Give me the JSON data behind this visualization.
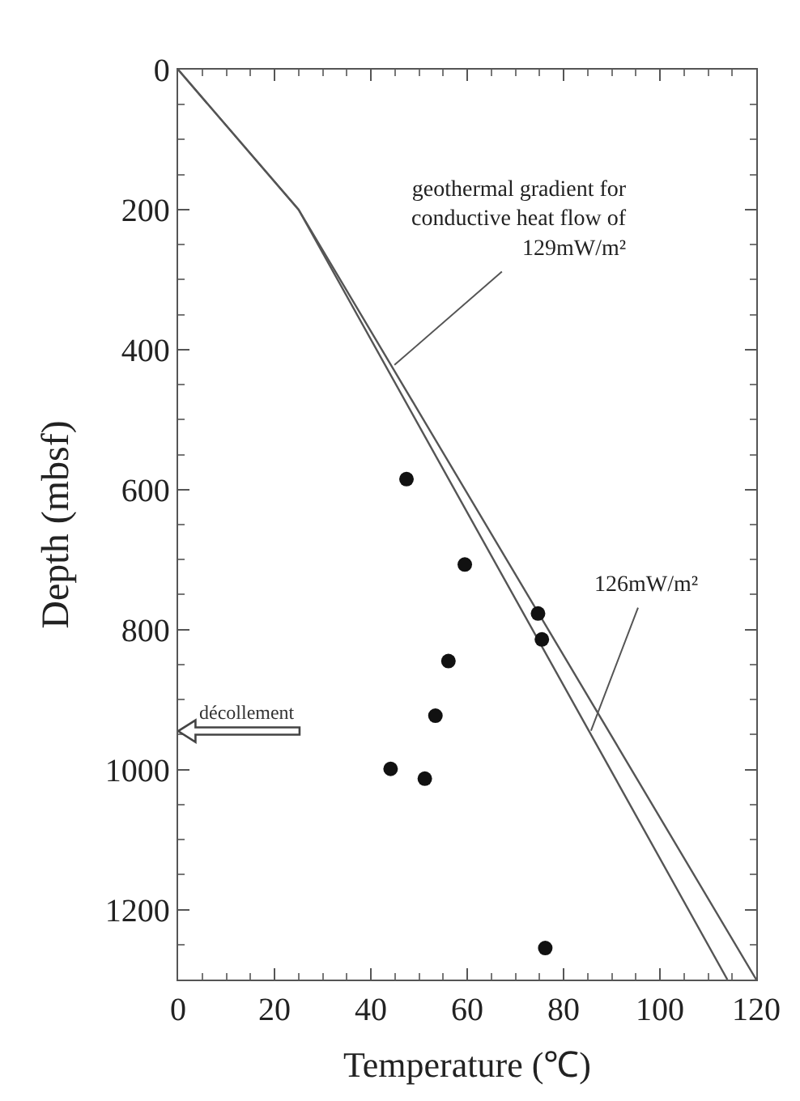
{
  "chart_data": {
    "type": "line",
    "xlabel": "Temperature (℃)",
    "ylabel": "Depth (mbsf)",
    "xlim": [
      0,
      120
    ],
    "xticks": [
      0,
      20,
      40,
      60,
      80,
      100,
      120
    ],
    "ylim": [
      1300,
      0
    ],
    "yticks": [
      0,
      200,
      400,
      600,
      800,
      1000,
      1200
    ],
    "legend": false,
    "series": [
      {
        "color": "#555555",
        "x": [
          0,
          25,
          120
        ],
        "values": [
          0,
          200,
          1300
        ],
        "marker": "none",
        "line_style": "solid"
      },
      {
        "color": "#555555",
        "x": [
          0,
          25,
          114
        ],
        "values": [
          0,
          200,
          1300
        ],
        "marker": "none",
        "line_style": "solid"
      },
      {
        "type": "scatter",
        "color": "#111111",
        "marker": "circle",
        "x": [
          47.4,
          59.5,
          74.7,
          75.5,
          56.1,
          53.4,
          44.1,
          51.2,
          76.2
        ],
        "values": [
          585,
          707,
          777,
          814,
          845,
          923,
          999,
          1013,
          1255
        ]
      }
    ],
    "annotations": [
      {
        "text": "geothermal gradient for\nconductive heat flow of\n129mW/m²",
        "x": 44.4,
        "y": 425
      },
      {
        "text": "126mW/m²",
        "x": 85.5,
        "y": 948
      }
    ],
    "ref_lines": [
      {
        "axis": "y",
        "value": 945,
        "label": "décollement",
        "color": "#444444"
      }
    ]
  }
}
